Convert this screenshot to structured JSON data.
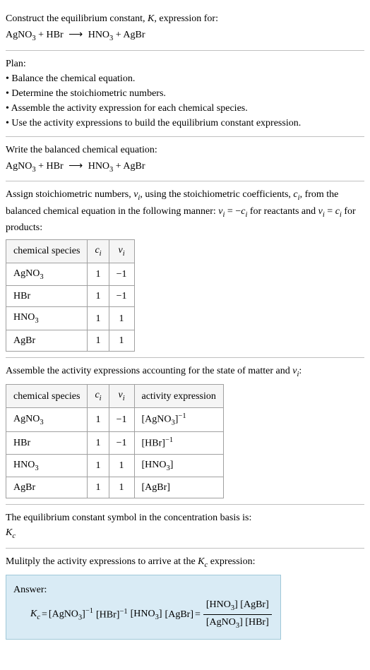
{
  "intro": {
    "line1_prefix": "Construct the equilibrium constant, ",
    "line1_K": "K",
    "line1_suffix": ", expression for:",
    "eq_lhs1": "AgNO",
    "eq_lhs1_sub": "3",
    "eq_plus": " + ",
    "eq_lhs2": "HBr",
    "eq_arrow": "⟶",
    "eq_rhs1": "HNO",
    "eq_rhs1_sub": "3",
    "eq_rhs2": "AgBr"
  },
  "plan": {
    "title": "Plan:",
    "b1": "• Balance the chemical equation.",
    "b2": "• Determine the stoichiometric numbers.",
    "b3": "• Assemble the activity expression for each chemical species.",
    "b4": "• Use the activity expressions to build the equilibrium constant expression."
  },
  "balanced": {
    "title": "Write the balanced chemical equation:"
  },
  "stoich": {
    "text1": "Assign stoichiometric numbers, ",
    "nu": "ν",
    "i": "i",
    "text2": ", using the stoichiometric coefficients, ",
    "c": "c",
    "text3": ", from the balanced chemical equation in the following manner: ",
    "eq1_lhs": "ν",
    "eq1_eq": " = −",
    "eq1_rhs": "c",
    "text4": " for reactants and ",
    "eq2_lhs": "ν",
    "eq2_eq": " = ",
    "eq2_rhs": "c",
    "text5": " for products:",
    "h1": "chemical species",
    "h2_c": "c",
    "h2_i": "i",
    "h3_nu": "ν",
    "h3_i": "i",
    "r1s": "AgNO",
    "r1sub": "3",
    "r1c": "1",
    "r1n": "−1",
    "r2s": "HBr",
    "r2c": "1",
    "r2n": "−1",
    "r3s": "HNO",
    "r3sub": "3",
    "r3c": "1",
    "r3n": "1",
    "r4s": "AgBr",
    "r4c": "1",
    "r4n": "1"
  },
  "activity": {
    "text1": "Assemble the activity expressions accounting for the state of matter and ",
    "text2": ":",
    "h1": "chemical species",
    "h4": "activity expression",
    "r1a_l": "[AgNO",
    "r1a_sub": "3",
    "r1a_r": "]",
    "r1a_exp": "−1",
    "r2a_l": "[HBr]",
    "r2a_exp": "−1",
    "r3a_l": "[HNO",
    "r3a_sub": "3",
    "r3a_r": "]",
    "r4a_l": "[AgBr]"
  },
  "kc_symbol": {
    "text": "The equilibrium constant symbol in the concentration basis is:",
    "K": "K",
    "c": "c"
  },
  "multiply": {
    "text1": "Mulitply the activity expressions to arrive at the ",
    "K": "K",
    "c": "c",
    "text2": " expression:"
  },
  "answer": {
    "label": "Answer:",
    "Kc_K": "K",
    "Kc_c": "c",
    "eq": " = ",
    "t1": "[AgNO",
    "t1sub": "3",
    "t1r": "]",
    "exp_neg1": "−1",
    "sp": " ",
    "t2": "[HBr]",
    "t3": "[HNO",
    "t3sub": "3",
    "t3r": "]",
    "t4": "[AgBr]",
    "eq2": " = ",
    "num1": "[HNO",
    "num1sub": "3",
    "num1r": "] [AgBr]",
    "den1": "[AgNO",
    "den1sub": "3",
    "den1r": "] [HBr]"
  }
}
